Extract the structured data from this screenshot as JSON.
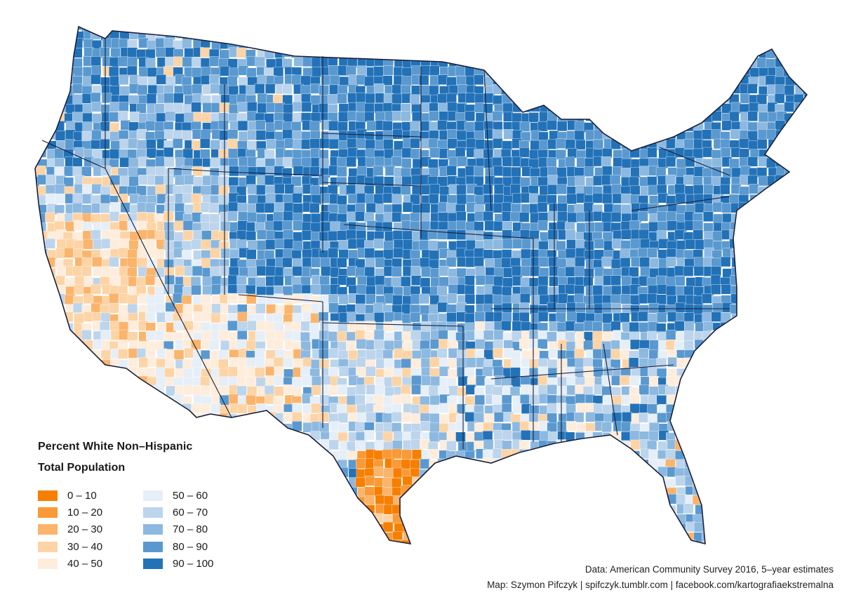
{
  "legend": {
    "title": "Percent White Non–Hispanic",
    "subtitle": "Total Population",
    "classes": [
      {
        "label": "0 – 10",
        "color": "#f77f00"
      },
      {
        "label": "10 – 20",
        "color": "#f99a37"
      },
      {
        "label": "20 – 30",
        "color": "#fbb46c"
      },
      {
        "label": "30 – 40",
        "color": "#fdd4a6"
      },
      {
        "label": "40 – 50",
        "color": "#feeddc"
      },
      {
        "label": "50 – 60",
        "color": "#e6eff8"
      },
      {
        "label": "60 – 70",
        "color": "#bcd5ec"
      },
      {
        "label": "70 – 80",
        "color": "#8db9e0"
      },
      {
        "label": "80 – 90",
        "color": "#5a99cf"
      },
      {
        "label": "90 – 100",
        "color": "#2372b8"
      }
    ]
  },
  "credits": {
    "data_source": "Data: American Community Survey 2016, 5–year estimates",
    "author": "Map: Szymon Pifczyk | spifczyk.tumblr.com | facebook.com/kartografiaekstremalna"
  },
  "map": {
    "ocean_color": "#ffffff",
    "border_color": "#1a1f3a"
  }
}
